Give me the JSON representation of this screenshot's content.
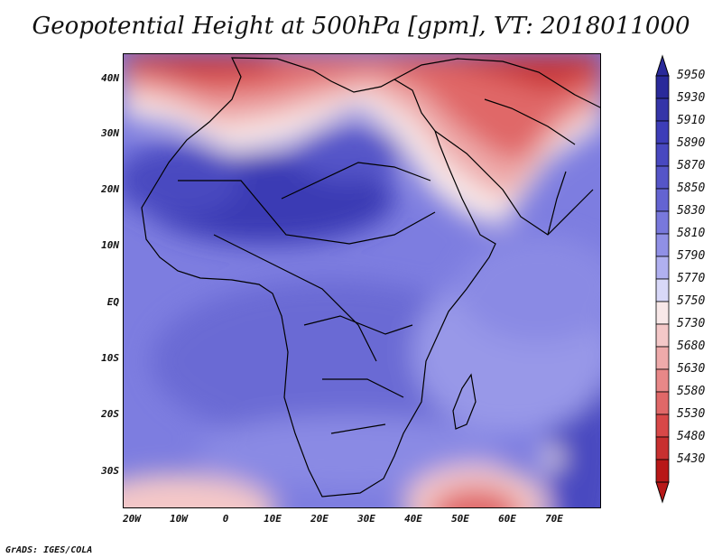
{
  "title": "Geopotential Height at 500hPa [gpm], VT: 2018011000",
  "footer": "GrADS: IGES/COLA",
  "map": {
    "lon_range": [
      -22,
      80
    ],
    "lat_range": [
      -37,
      45
    ],
    "lat_ticks": [
      {
        "value": 40,
        "label": "40N"
      },
      {
        "value": 30,
        "label": "30N"
      },
      {
        "value": 20,
        "label": "20N"
      },
      {
        "value": 10,
        "label": "10N"
      },
      {
        "value": 0,
        "label": "EQ"
      },
      {
        "value": -10,
        "label": "10S"
      },
      {
        "value": -20,
        "label": "20S"
      },
      {
        "value": -30,
        "label": "30S"
      }
    ],
    "lon_ticks": [
      {
        "value": -20,
        "label": "20W"
      },
      {
        "value": -10,
        "label": "10W"
      },
      {
        "value": 0,
        "label": "0"
      },
      {
        "value": 10,
        "label": "10E"
      },
      {
        "value": 20,
        "label": "20E"
      },
      {
        "value": 30,
        "label": "30E"
      },
      {
        "value": 40,
        "label": "40E"
      },
      {
        "value": 50,
        "label": "50E"
      },
      {
        "value": 60,
        "label": "60E"
      },
      {
        "value": 70,
        "label": "70E"
      }
    ]
  },
  "colorbar": {
    "levels": [
      "5950",
      "5930",
      "5910",
      "5890",
      "5870",
      "5850",
      "5830",
      "5810",
      "5790",
      "5770",
      "5750",
      "5730",
      "5680",
      "5630",
      "5580",
      "5530",
      "5480",
      "5430"
    ],
    "colors": [
      "#2a2a9a",
      "#3535a8",
      "#3d3db8",
      "#4848c0",
      "#5555c8",
      "#6464d2",
      "#7878dc",
      "#9090e6",
      "#b0b0f0",
      "#d8d8f8",
      "#f8e8e8",
      "#f4c8c8",
      "#eeaaaa",
      "#e88888",
      "#e06868",
      "#d84848",
      "#c83030",
      "#b81818"
    ]
  }
}
